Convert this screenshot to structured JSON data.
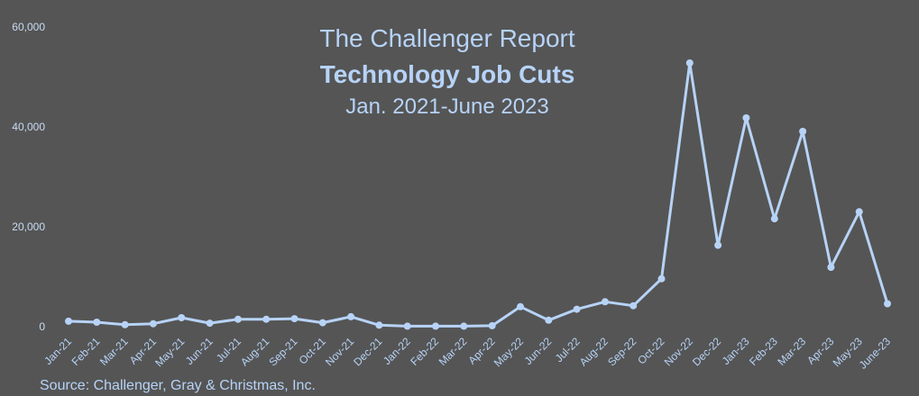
{
  "chart_data": {
    "type": "line",
    "title": "The Challenger Report",
    "subtitle": "Technology Job Cuts",
    "date_range": "Jan. 2021-June 2023",
    "source": "Source: Challenger, Gray & Christmas, Inc.",
    "ylim": [
      0,
      60000
    ],
    "y_ticks": [
      0,
      20000,
      40000,
      60000
    ],
    "y_tick_labels": [
      "0",
      "20,000",
      "40,000",
      "60,000"
    ],
    "grid": false,
    "categories": [
      "Jan-21",
      "Feb-21",
      "Mar-21",
      "Apr-21",
      "May-21",
      "Jun-21",
      "Jul-21",
      "Aug-21",
      "Sep-21",
      "Oct-21",
      "Nov-21",
      "Dec-21",
      "Jan-22",
      "Feb-22",
      "Mar-22",
      "Apr-22",
      "May-22",
      "Jun-22",
      "Jul-22",
      "Aug-22",
      "Sep-22",
      "Oct-22",
      "Nov-22",
      "Dec-22",
      "Jan-23",
      "Feb-23",
      "Mar-23",
      "Apr-23",
      "May-23",
      "June-23"
    ],
    "series": [
      {
        "values": [
          1100,
          900,
          400,
          600,
          1800,
          700,
          1500,
          1500,
          1600,
          800,
          2000,
          300,
          100,
          100,
          100,
          200,
          4000,
          1300,
          3500,
          5000,
          4200,
          9600,
          52800,
          16300,
          41800,
          21600,
          39100,
          11900,
          23000,
          4600
        ],
        "color": "#b7d3f7"
      }
    ]
  }
}
